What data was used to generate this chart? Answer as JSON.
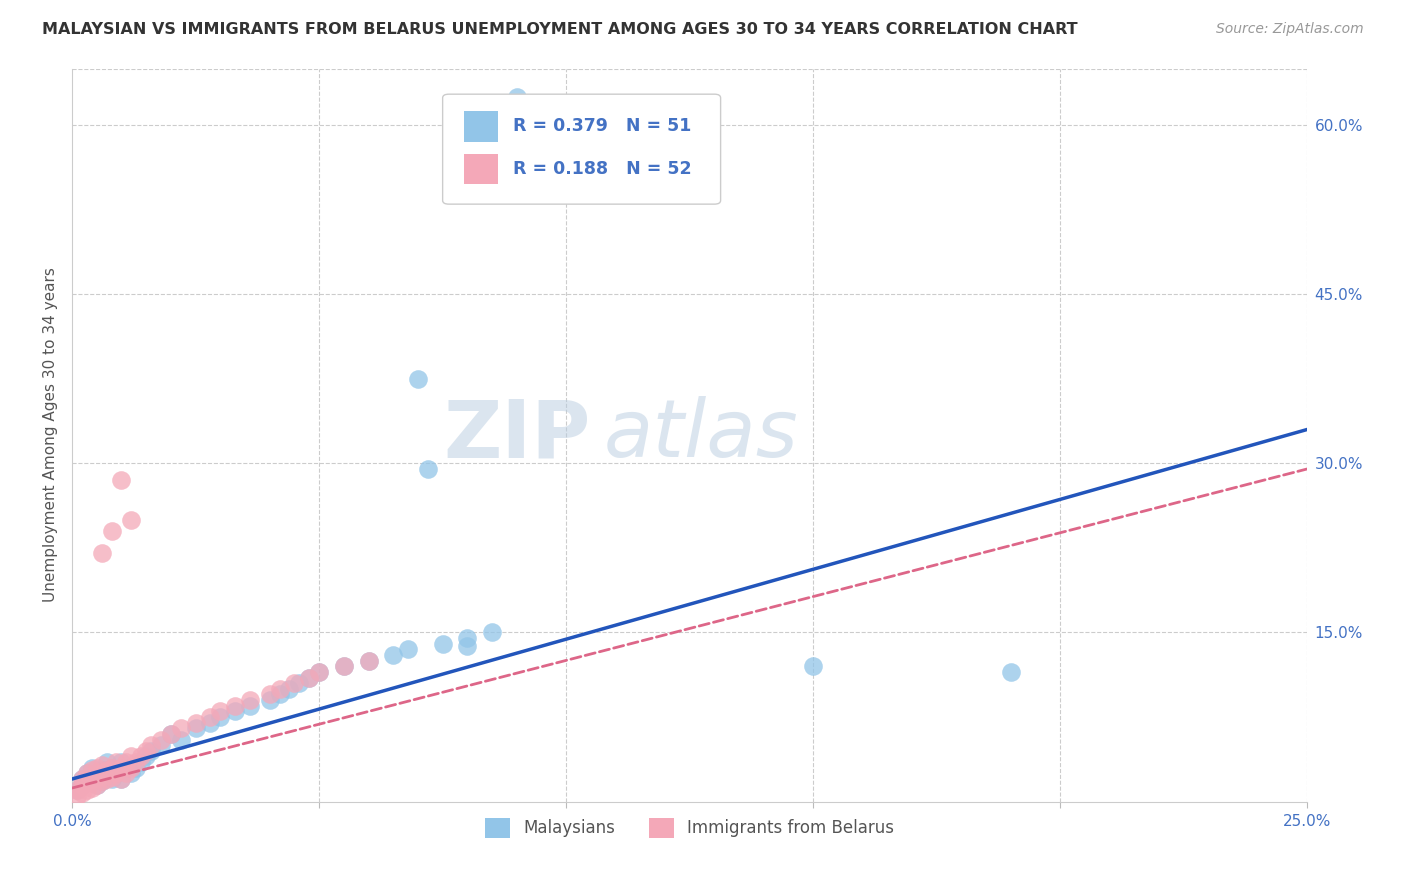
{
  "title": "MALAYSIAN VS IMMIGRANTS FROM BELARUS UNEMPLOYMENT AMONG AGES 30 TO 34 YEARS CORRELATION CHART",
  "source": "Source: ZipAtlas.com",
  "ylabel": "Unemployment Among Ages 30 to 34 years",
  "xlim": [
    0.0,
    0.25
  ],
  "ylim": [
    0.0,
    0.65
  ],
  "x_ticks": [
    0.0,
    0.05,
    0.1,
    0.15,
    0.2,
    0.25
  ],
  "x_tick_labels": [
    "0.0%",
    "",
    "",
    "",
    "",
    "25.0%"
  ],
  "y_ticks_right": [
    0.15,
    0.3,
    0.45,
    0.6
  ],
  "y_tick_labels_right": [
    "15.0%",
    "30.0%",
    "45.0%",
    "60.0%"
  ],
  "R_malaysian": 0.379,
  "N_malaysian": 51,
  "R_belarus": 0.188,
  "N_belarus": 52,
  "blue_color": "#92C5E8",
  "pink_color": "#F4A8B8",
  "blue_line_color": "#2255BB",
  "pink_line_color": "#DD6688",
  "watermark_zip": "ZIP",
  "watermark_atlas": "atlas",
  "background_color": "#FFFFFF",
  "grid_color": "#CCCCCC",
  "blue_scatter_x": [
    0.001,
    0.002,
    0.002,
    0.003,
    0.003,
    0.004,
    0.004,
    0.005,
    0.005,
    0.006,
    0.006,
    0.007,
    0.007,
    0.008,
    0.008,
    0.009,
    0.01,
    0.01,
    0.011,
    0.012,
    0.013,
    0.014,
    0.015,
    0.016,
    0.018,
    0.02,
    0.022,
    0.025,
    0.028,
    0.03,
    0.033,
    0.036,
    0.04,
    0.042,
    0.044,
    0.046,
    0.048,
    0.05,
    0.055,
    0.06,
    0.065,
    0.068,
    0.07,
    0.072,
    0.075,
    0.08,
    0.085,
    0.09,
    0.15,
    0.19,
    0.08
  ],
  "blue_scatter_y": [
    0.01,
    0.015,
    0.02,
    0.018,
    0.025,
    0.022,
    0.03,
    0.015,
    0.025,
    0.018,
    0.028,
    0.022,
    0.035,
    0.02,
    0.03,
    0.025,
    0.02,
    0.035,
    0.03,
    0.025,
    0.03,
    0.035,
    0.04,
    0.045,
    0.05,
    0.06,
    0.055,
    0.065,
    0.07,
    0.075,
    0.08,
    0.085,
    0.09,
    0.095,
    0.1,
    0.105,
    0.11,
    0.115,
    0.12,
    0.125,
    0.13,
    0.135,
    0.375,
    0.295,
    0.14,
    0.145,
    0.15,
    0.625,
    0.12,
    0.115,
    0.138
  ],
  "pink_scatter_x": [
    0.001,
    0.001,
    0.002,
    0.002,
    0.002,
    0.003,
    0.003,
    0.003,
    0.004,
    0.004,
    0.004,
    0.005,
    0.005,
    0.005,
    0.006,
    0.006,
    0.006,
    0.007,
    0.007,
    0.008,
    0.008,
    0.009,
    0.009,
    0.01,
    0.01,
    0.011,
    0.011,
    0.012,
    0.012,
    0.013,
    0.014,
    0.015,
    0.016,
    0.018,
    0.02,
    0.022,
    0.025,
    0.028,
    0.03,
    0.033,
    0.036,
    0.04,
    0.042,
    0.045,
    0.048,
    0.05,
    0.055,
    0.06,
    0.01,
    0.012,
    0.008,
    0.006
  ],
  "pink_scatter_y": [
    0.005,
    0.01,
    0.008,
    0.015,
    0.02,
    0.01,
    0.018,
    0.025,
    0.012,
    0.02,
    0.028,
    0.015,
    0.022,
    0.03,
    0.018,
    0.025,
    0.032,
    0.02,
    0.028,
    0.022,
    0.03,
    0.025,
    0.035,
    0.02,
    0.03,
    0.025,
    0.035,
    0.03,
    0.04,
    0.035,
    0.04,
    0.045,
    0.05,
    0.055,
    0.06,
    0.065,
    0.07,
    0.075,
    0.08,
    0.085,
    0.09,
    0.095,
    0.1,
    0.105,
    0.11,
    0.115,
    0.12,
    0.125,
    0.285,
    0.25,
    0.24,
    0.22
  ],
  "blue_line_x0": 0.0,
  "blue_line_y0": 0.02,
  "blue_line_x1": 0.25,
  "blue_line_y1": 0.33,
  "pink_line_x0": 0.0,
  "pink_line_y0": 0.012,
  "pink_line_x1": 0.25,
  "pink_line_y1": 0.295
}
